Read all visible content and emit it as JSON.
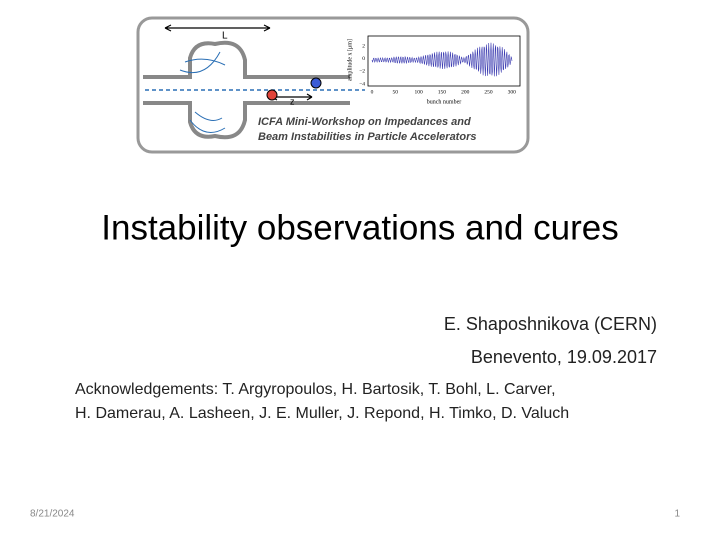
{
  "logo": {
    "length_label": "L",
    "z_label": "z",
    "plot": {
      "y_label": "amplitude x [μm]",
      "yticks": [
        "2",
        "0",
        "−2",
        "−4"
      ],
      "xticks": [
        "0",
        "50",
        "100",
        "150",
        "200",
        "250",
        "300"
      ],
      "x_label": "bunch number"
    },
    "workshop_line1": "ICFA Mini-Workshop on Impedances and",
    "workshop_line2": "Beam Instabilities in Particle Accelerators"
  },
  "title": "Instability observations and cures",
  "author": "E. Shaposhnikova (CERN)",
  "place_date": "Benevento, 19.09.2017",
  "acknowledgements": [
    "Acknowledgements: T. Argyropoulos, H. Bartosik, T. Bohl, L. Carver,",
    "H. Damerau, A. Lasheen, J. E. Muller, J. Repond, H. Timko, D. Valuch"
  ],
  "footer": {
    "date": "8/21/2024",
    "page": "1"
  }
}
